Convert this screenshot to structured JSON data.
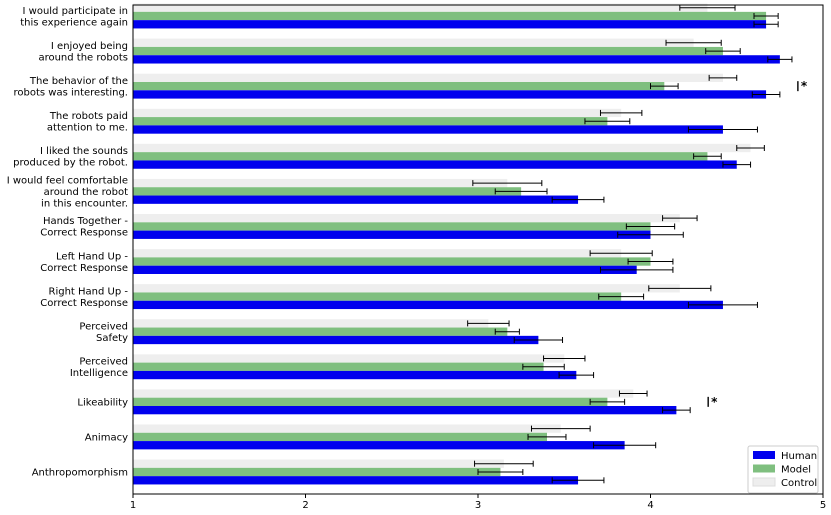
{
  "chart_data": {
    "type": "bar",
    "orientation": "horizontal",
    "xlim": [
      1,
      5
    ],
    "x_ticks": [
      "1",
      "2",
      "3",
      "4",
      "5"
    ],
    "grid": false,
    "legend_position": "bottom-right",
    "categories": [
      [
        "I would participate in",
        "this experience again"
      ],
      [
        "I enjoyed being",
        "around the robots"
      ],
      [
        "The behavior of the",
        "robots was interesting."
      ],
      [
        "The robots paid",
        "attention to me."
      ],
      [
        "I liked the sounds",
        "produced by the robot."
      ],
      [
        "I would feel comfortable",
        "around the robot",
        "in this encounter."
      ],
      [
        "Hands Together -",
        "Correct Response"
      ],
      [
        "Left Hand Up -",
        "Correct Response"
      ],
      [
        "Right Hand Up -",
        "Correct Response"
      ],
      [
        "Perceived",
        "Safety"
      ],
      [
        "Perceived",
        "Intelligence"
      ],
      [
        "Likeability"
      ],
      [
        "Animacy"
      ],
      [
        "Anthropomorphism"
      ]
    ],
    "series": [
      {
        "name": "Control",
        "color": "#eeeeee",
        "values": [
          4.33,
          4.25,
          4.42,
          3.83,
          4.58,
          3.17,
          4.17,
          3.83,
          4.17,
          3.06,
          3.5,
          3.9,
          3.48,
          3.15
        ],
        "errors": [
          0.16,
          0.16,
          0.08,
          0.12,
          0.08,
          0.2,
          0.1,
          0.18,
          0.18,
          0.12,
          0.12,
          0.08,
          0.17,
          0.17
        ]
      },
      {
        "name": "Model",
        "color": "#7fbf7f",
        "values": [
          4.67,
          4.42,
          4.08,
          3.75,
          4.33,
          3.25,
          4.0,
          4.0,
          3.83,
          3.17,
          3.38,
          3.75,
          3.4,
          3.13
        ],
        "errors": [
          0.07,
          0.1,
          0.08,
          0.13,
          0.08,
          0.15,
          0.14,
          0.13,
          0.13,
          0.07,
          0.12,
          0.1,
          0.11,
          0.13
        ]
      },
      {
        "name": "Human",
        "color": "#0000ee",
        "values": [
          4.67,
          4.75,
          4.67,
          4.42,
          4.5,
          3.58,
          4.0,
          3.92,
          4.42,
          3.35,
          3.57,
          4.15,
          3.85,
          3.58
        ],
        "errors": [
          0.07,
          0.07,
          0.08,
          0.2,
          0.08,
          0.15,
          0.19,
          0.21,
          0.2,
          0.14,
          0.1,
          0.08,
          0.18,
          0.15
        ]
      }
    ],
    "annotations": [
      {
        "category_index": 2,
        "text": "*"
      },
      {
        "category_index": 11,
        "text": "*"
      }
    ]
  }
}
